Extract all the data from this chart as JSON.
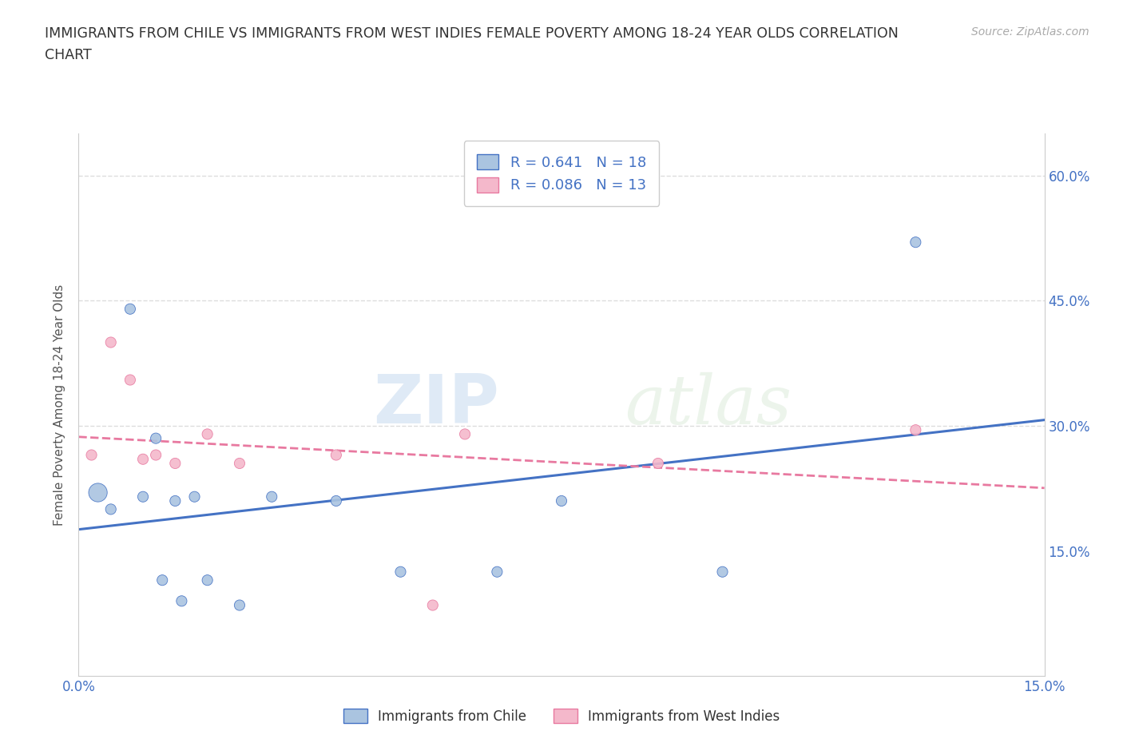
{
  "title_line1": "IMMIGRANTS FROM CHILE VS IMMIGRANTS FROM WEST INDIES FEMALE POVERTY AMONG 18-24 YEAR OLDS CORRELATION",
  "title_line2": "CHART",
  "source": "Source: ZipAtlas.com",
  "ylabel": "Female Poverty Among 18-24 Year Olds",
  "xlim": [
    0.0,
    0.15
  ],
  "ylim": [
    0.0,
    0.65
  ],
  "xticks": [
    0.0,
    0.03,
    0.06,
    0.09,
    0.12,
    0.15
  ],
  "yticks_right": [
    0.15,
    0.3,
    0.45,
    0.6
  ],
  "ytick_labels_right": [
    "15.0%",
    "30.0%",
    "45.0%",
    "60.0%"
  ],
  "xtick_labels": [
    "0.0%",
    "",
    "",
    "",
    "",
    "15.0%"
  ],
  "watermark_zip": "ZIP",
  "watermark_atlas": "atlas",
  "chile_color": "#aac4e0",
  "west_indies_color": "#f4b8cb",
  "chile_edge_color": "#4472c4",
  "west_indies_edge_color": "#e879a0",
  "chile_line_color": "#4472c4",
  "west_indies_line_color": "#e879a0",
  "tick_label_color": "#4472c4",
  "R_chile": 0.641,
  "N_chile": 18,
  "R_west_indies": 0.086,
  "N_west_indies": 13,
  "chile_x": [
    0.003,
    0.005,
    0.008,
    0.01,
    0.012,
    0.013,
    0.015,
    0.016,
    0.018,
    0.02,
    0.025,
    0.03,
    0.04,
    0.05,
    0.065,
    0.075,
    0.1,
    0.13
  ],
  "chile_y": [
    0.22,
    0.2,
    0.44,
    0.215,
    0.285,
    0.115,
    0.21,
    0.09,
    0.215,
    0.115,
    0.085,
    0.215,
    0.21,
    0.125,
    0.125,
    0.21,
    0.125,
    0.52
  ],
  "chile_size": [
    280,
    90,
    90,
    90,
    90,
    90,
    90,
    90,
    90,
    90,
    90,
    90,
    90,
    90,
    90,
    90,
    90,
    90
  ],
  "west_indies_x": [
    0.002,
    0.005,
    0.008,
    0.01,
    0.012,
    0.015,
    0.02,
    0.025,
    0.04,
    0.055,
    0.06,
    0.09,
    0.13
  ],
  "west_indies_y": [
    0.265,
    0.4,
    0.355,
    0.26,
    0.265,
    0.255,
    0.29,
    0.255,
    0.265,
    0.085,
    0.29,
    0.255,
    0.295
  ],
  "west_indies_size": [
    90,
    90,
    90,
    90,
    90,
    90,
    90,
    90,
    90,
    90,
    90,
    90,
    90
  ],
  "grid_color": "#dddddd",
  "background_color": "#ffffff"
}
